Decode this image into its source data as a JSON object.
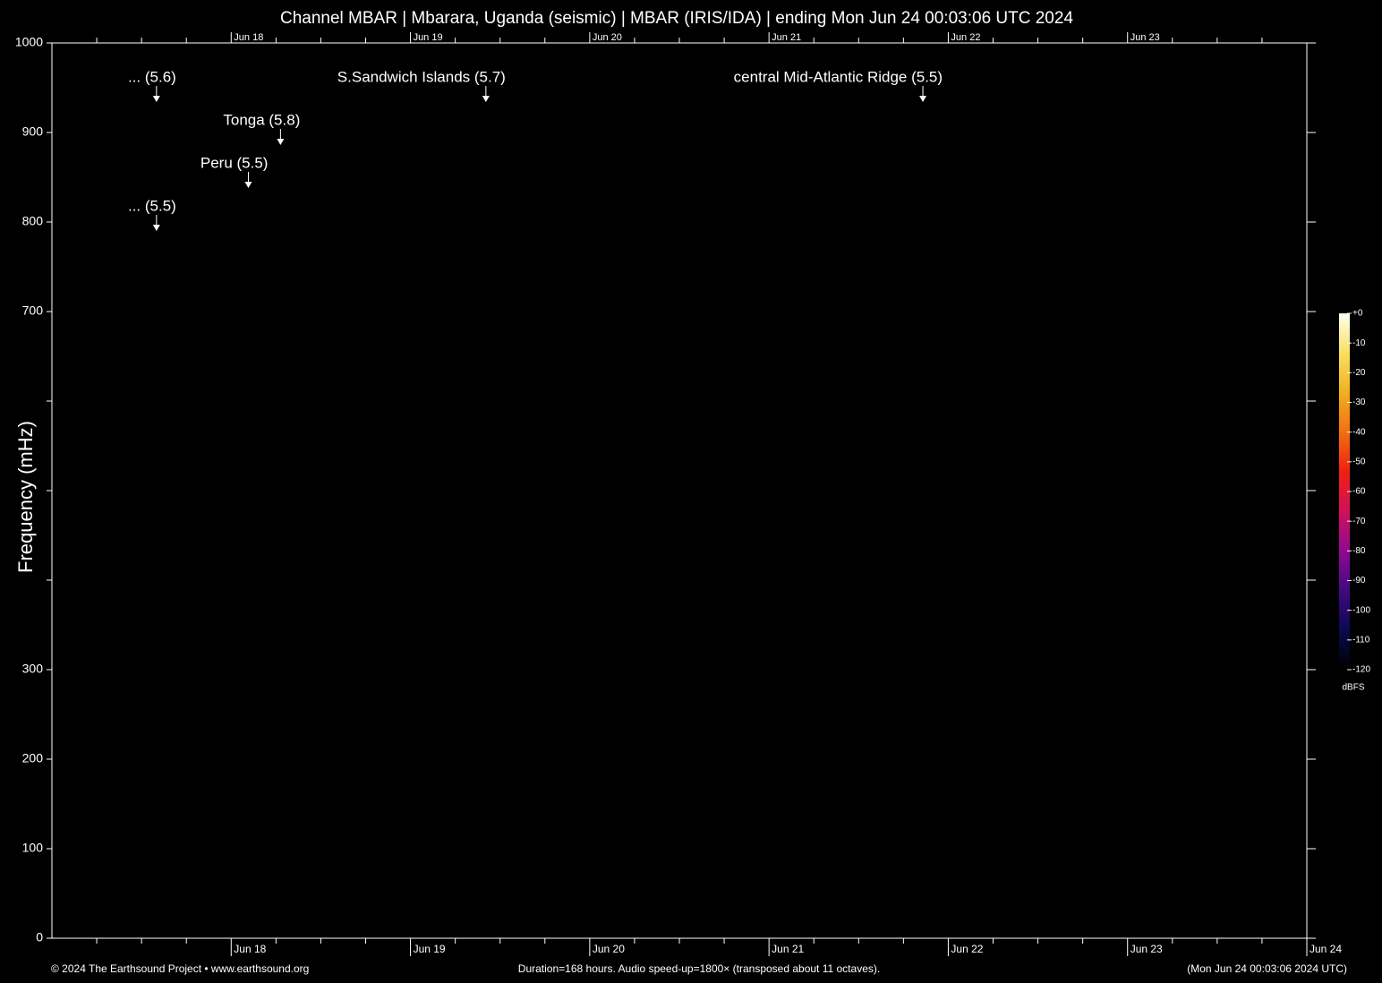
{
  "chart_data": {
    "type": "spectrogram",
    "title": "Channel MBAR | Mbarara, Uganda (seismic) | MBAR (IRIS/IDA) | ending Mon Jun 24 00:03:06 UTC 2024",
    "y_label": "Frequency (mHz)",
    "xlim": [
      0,
      168
    ],
    "xticks": [
      {
        "value": 24,
        "label": "Jun 18"
      },
      {
        "value": 48,
        "label": "Jun 19"
      },
      {
        "value": 72,
        "label": "Jun 20"
      },
      {
        "value": 96,
        "label": "Jun 21"
      },
      {
        "value": 120,
        "label": "Jun 22"
      },
      {
        "value": 144,
        "label": "Jun 23"
      },
      {
        "value": 168,
        "label": "Jun 24"
      }
    ],
    "xminor_ticks": [
      6,
      12,
      18,
      30,
      36,
      42,
      54,
      60,
      66,
      78,
      84,
      90,
      102,
      108,
      114,
      126,
      132,
      138,
      150,
      156,
      162
    ],
    "ylim": [
      0,
      1000
    ],
    "yticks": [
      0,
      100,
      200,
      300,
      700,
      800,
      900,
      1000
    ],
    "y_unlabeled_ticks": [
      400,
      500,
      600
    ],
    "events": [
      {
        "label": "... (5.6)",
        "x": 14.0
      },
      {
        "label": "Tonga (5.8)",
        "x": 30.6
      },
      {
        "label": "Peru (5.5)",
        "x": 26.3
      },
      {
        "label": "... (5.5)",
        "x": 14.0
      },
      {
        "label": "S.Sandwich Islands (5.7)",
        "x": 58.1
      },
      {
        "label": "central Mid-Atlantic Ridge (5.5)",
        "x": 116.6
      }
    ],
    "colorbar": {
      "label": "dBFS",
      "lim": [
        -120,
        0
      ],
      "ticks": [
        {
          "value": 0,
          "label": "+0"
        },
        -10,
        -20,
        -30,
        -40,
        -50,
        -60,
        -70,
        -80,
        -90,
        -100,
        -110,
        -120
      ],
      "colors": [
        "#000000",
        "#0a0a50",
        "#400a80",
        "#900a90",
        "#d0105a",
        "#f02010",
        "#f07010",
        "#f0b020",
        "#f8e060",
        "#fffff0"
      ]
    },
    "footer_left": "© 2024 The Earthsound Project • www.earthsound.org",
    "footer_center": "Duration=168 hours. Audio speed-up=1800× (transposed about 11 octaves).",
    "footer_right": "(Mon Jun 24 00:03:06 2024 UTC)"
  }
}
